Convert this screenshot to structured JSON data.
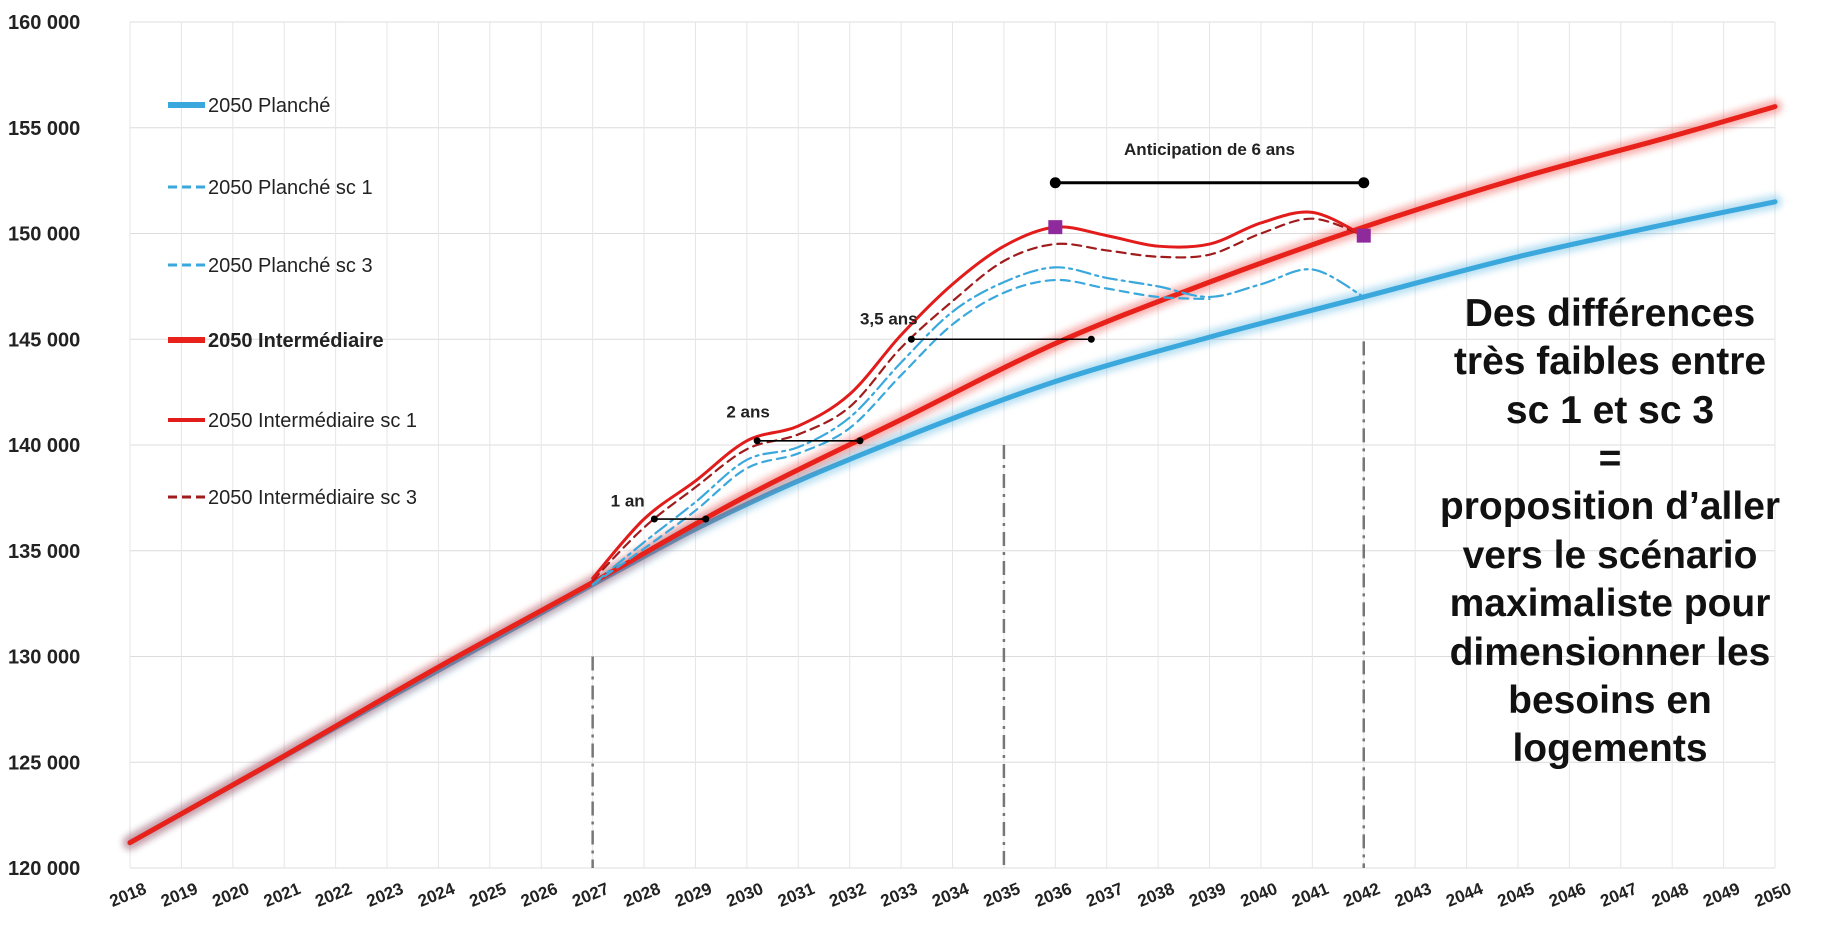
{
  "chart_data": {
    "type": "line",
    "xlim": [
      2018,
      2050
    ],
    "ylim": [
      120000,
      160000
    ],
    "grid": true,
    "legend_position": "left",
    "y_ticks": [
      "120 000",
      "125 000",
      "130 000",
      "135 000",
      "140 000",
      "145 000",
      "150 000",
      "155 000",
      "160 000"
    ],
    "x_ticks": [
      "2018",
      "2019",
      "2020",
      "2021",
      "2022",
      "2023",
      "2024",
      "2025",
      "2026",
      "2027",
      "2028",
      "2029",
      "2030",
      "2031",
      "2032",
      "2033",
      "2034",
      "2035",
      "2036",
      "2037",
      "2038",
      "2039",
      "2040",
      "2041",
      "2042",
      "2043",
      "2044",
      "2045",
      "2046",
      "2047",
      "2048",
      "2049",
      "2050"
    ],
    "series": [
      {
        "name": "2050 Planché",
        "color": "#3aa8dc",
        "style": "solid-glow",
        "x": [
          2018,
          2027,
          2030,
          2033,
          2036,
          2039,
          2042,
          2045,
          2048,
          2050
        ],
        "y": [
          121200,
          133400,
          137200,
          140300,
          143000,
          145100,
          147000,
          148900,
          150500,
          151500
        ]
      },
      {
        "name": "2050 Planché sc 1",
        "color": "#3aa8dc",
        "style": "dashdot",
        "x": [
          2027,
          2028,
          2029,
          2030,
          2031,
          2032,
          2033,
          2034,
          2035,
          2036,
          2037,
          2038,
          2039,
          2040,
          2041,
          2042
        ],
        "y": [
          133400,
          135400,
          137300,
          139300,
          139900,
          141300,
          143900,
          146300,
          147700,
          148400,
          147900,
          147500,
          147000,
          147600,
          148300,
          147000
        ]
      },
      {
        "name": "2050 Planché sc 3",
        "color": "#3aa8dc",
        "style": "dashed",
        "x": [
          2027,
          2028,
          2029,
          2030,
          2031,
          2032,
          2033,
          2034,
          2035,
          2036,
          2037,
          2038,
          2039
        ],
        "y": [
          133400,
          135100,
          136900,
          138900,
          139600,
          140800,
          143300,
          145700,
          147200,
          147800,
          147400,
          147000,
          146900
        ]
      },
      {
        "name": "2050 Intermédiaire",
        "color": "#e8211a",
        "style": "solid-glow",
        "x": [
          2018,
          2021,
          2024,
          2027,
          2030,
          2033,
          2036,
          2039,
          2042,
          2045,
          2048,
          2050
        ],
        "y": [
          121200,
          125300,
          129500,
          133500,
          137600,
          141200,
          144800,
          147700,
          150300,
          152600,
          154600,
          156000
        ]
      },
      {
        "name": "2050 Intermédiaire sc 1",
        "color": "#e21b1b",
        "style": "solid",
        "x": [
          2027,
          2028,
          2029,
          2030,
          2031,
          2032,
          2033,
          2034,
          2035,
          2036,
          2037,
          2038,
          2039,
          2040,
          2041,
          2042
        ],
        "y": [
          133700,
          136500,
          138300,
          140200,
          140900,
          142400,
          145200,
          147600,
          149400,
          150300,
          149900,
          149400,
          149500,
          150500,
          151000,
          149900
        ]
      },
      {
        "name": "2050 Intermédiaire sc 3",
        "color": "#a01c1c",
        "style": "dashed",
        "x": [
          2027,
          2028,
          2029,
          2030,
          2031,
          2032,
          2033,
          2034,
          2035,
          2036,
          2037,
          2038,
          2039,
          2040,
          2041,
          2042
        ],
        "y": [
          133600,
          136100,
          138000,
          139800,
          140500,
          141800,
          144600,
          146800,
          148700,
          149500,
          149200,
          148900,
          149000,
          150000,
          150700,
          149900
        ]
      }
    ],
    "vertical_markers": [
      {
        "x": 2027,
        "y_from": 120000,
        "y_to": 130000
      },
      {
        "x": 2035,
        "y_from": 120000,
        "y_to": 140000
      },
      {
        "x": 2042,
        "y_from": 120000,
        "y_to": 144900
      }
    ],
    "square_markers": [
      {
        "x": 2036,
        "y": 150300,
        "color": "#8e2a9c"
      },
      {
        "x": 2042,
        "y": 149900,
        "color": "#8e2a9c"
      }
    ],
    "annotations": [
      {
        "text": "1 an",
        "x1": 2028.2,
        "x2": 2029.2,
        "y": 136500,
        "label_x": 2027.35,
        "label_y": 137100
      },
      {
        "text": "2 ans",
        "x1": 2030.2,
        "x2": 2032.2,
        "y": 140200,
        "label_x": 2029.6,
        "label_y": 141300
      },
      {
        "text": "3,5 ans",
        "x1": 2033.2,
        "x2": 2036.7,
        "y": 145000,
        "label_x": 2032.2,
        "label_y": 145700
      },
      {
        "text": "Anticipation de 6 ans",
        "x1": 2036,
        "x2": 2042,
        "y": 152400,
        "label_x": 2039,
        "label_y": 153700
      }
    ],
    "callout": [
      "Des différences",
      "très faibles entre",
      "sc 1 et sc 3",
      "=",
      "proposition d’aller",
      "vers le scénario",
      "maximaliste pour",
      "dimensionner les",
      "besoins en",
      "logements"
    ]
  }
}
